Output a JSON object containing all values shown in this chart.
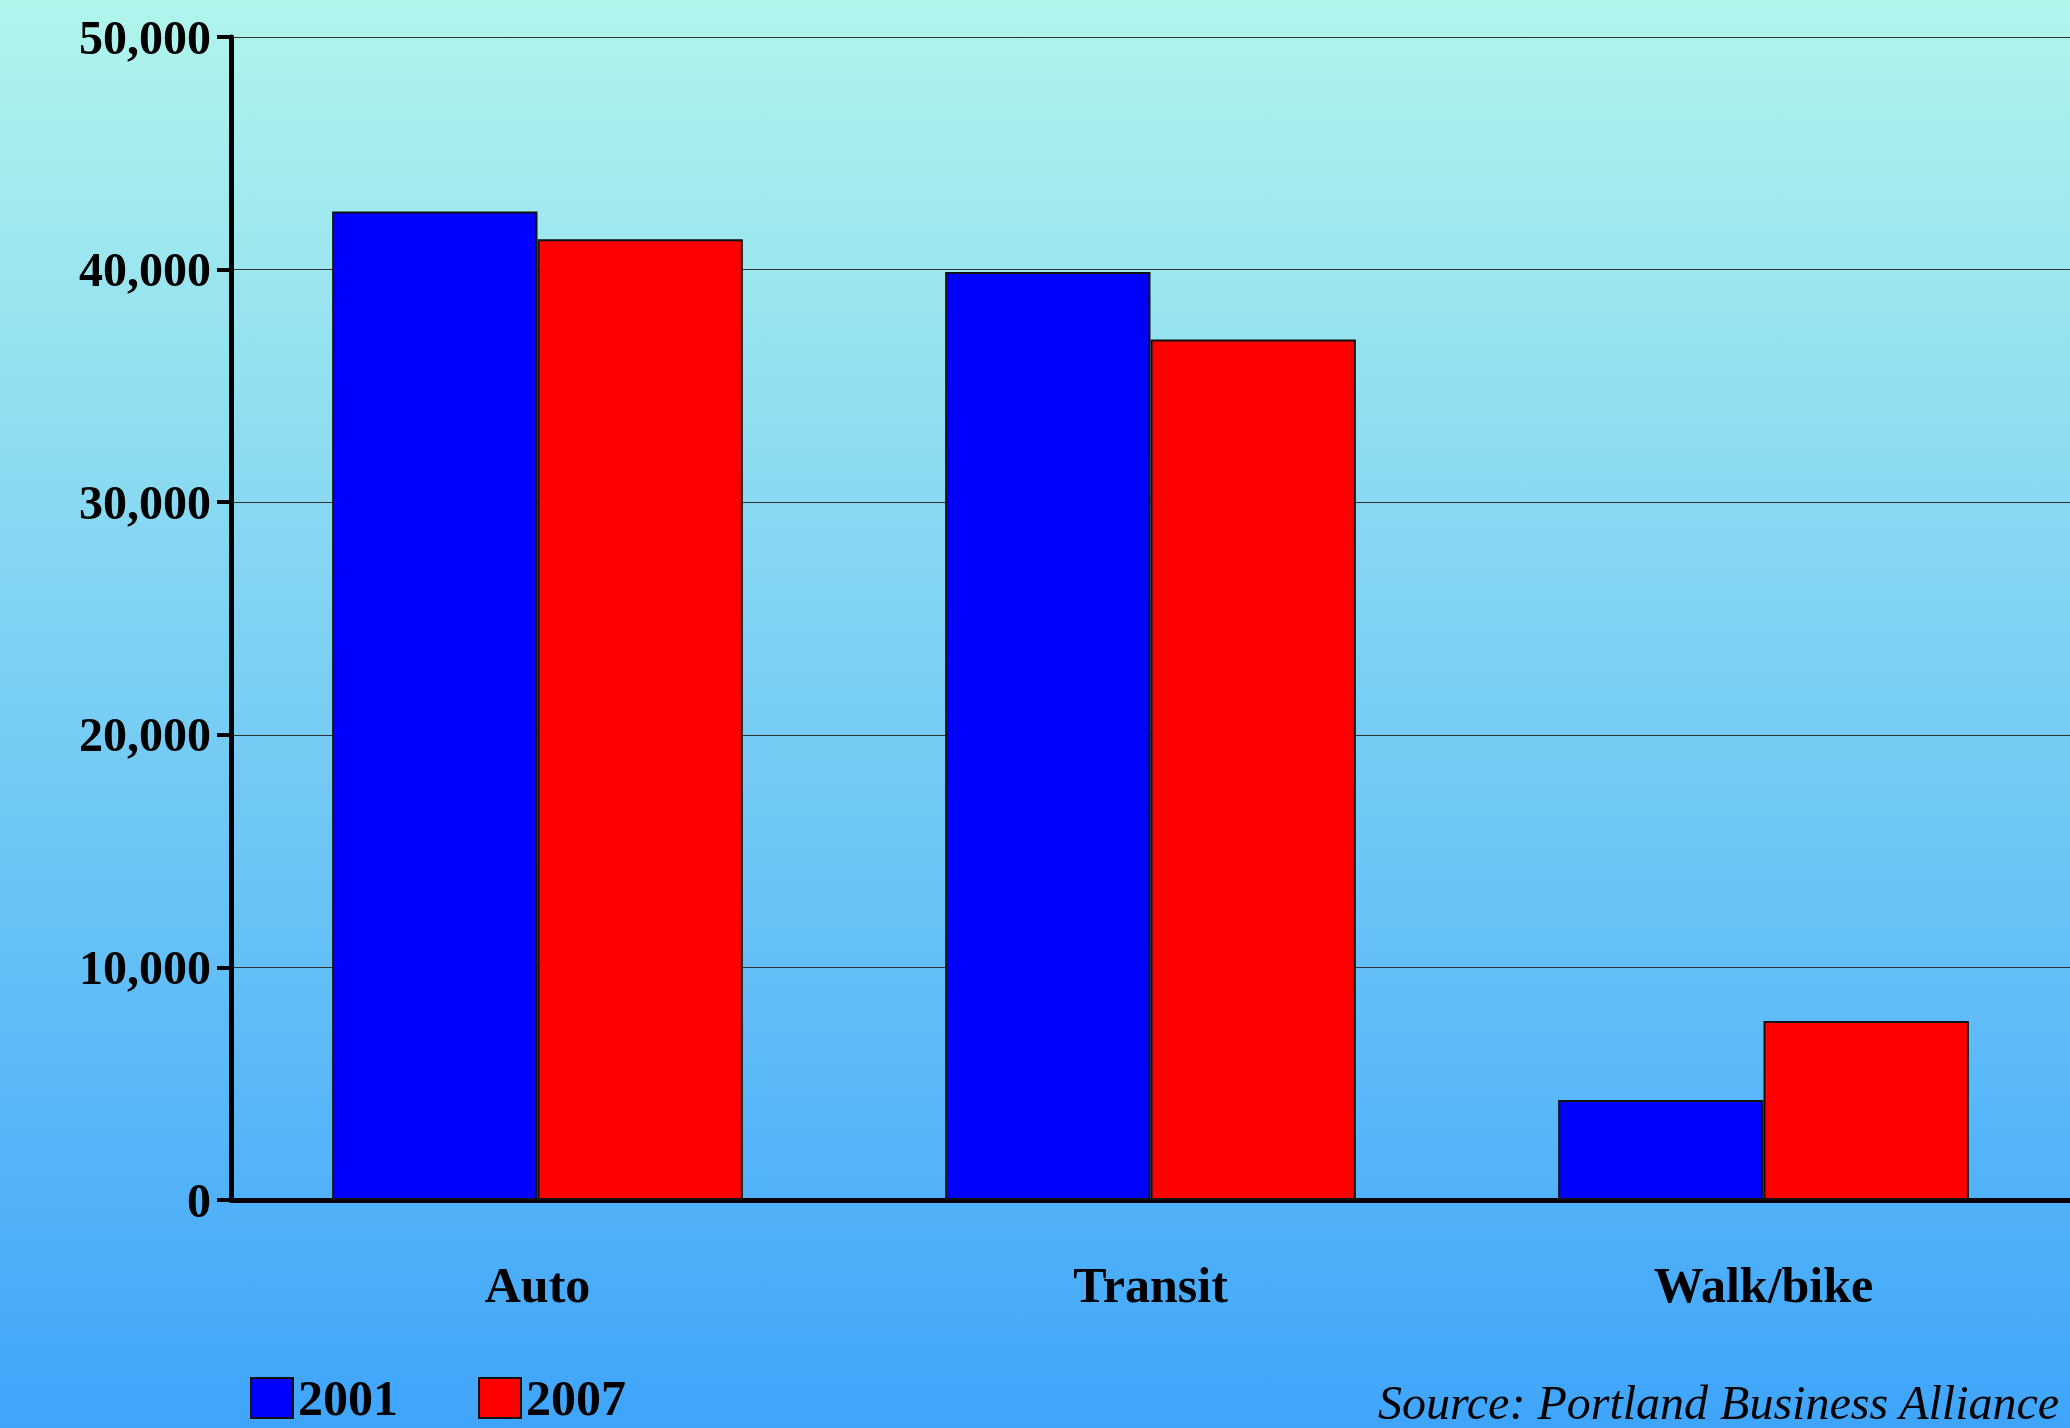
{
  "chart_data": {
    "type": "bar",
    "categories": [
      "Auto",
      "Transit",
      "Walk/bike"
    ],
    "series": [
      {
        "name": "2001",
        "color": "#0000ff",
        "values": [
          42500,
          39900,
          4300
        ]
      },
      {
        "name": "2007",
        "color": "#ff0000",
        "values": [
          41300,
          37000,
          7700
        ]
      }
    ],
    "ylim": [
      0,
      50000
    ],
    "yticks": [
      {
        "value": 0,
        "label": "0"
      },
      {
        "value": 10000,
        "label": "10,000"
      },
      {
        "value": 20000,
        "label": "20,000"
      },
      {
        "value": 30000,
        "label": "30,000"
      },
      {
        "value": 40000,
        "label": "40,000"
      },
      {
        "value": 50000,
        "label": "50,000"
      }
    ],
    "grid": "y",
    "legend": "bottom left",
    "annotations": [
      "Source: Portland Business Alliance"
    ]
  }
}
